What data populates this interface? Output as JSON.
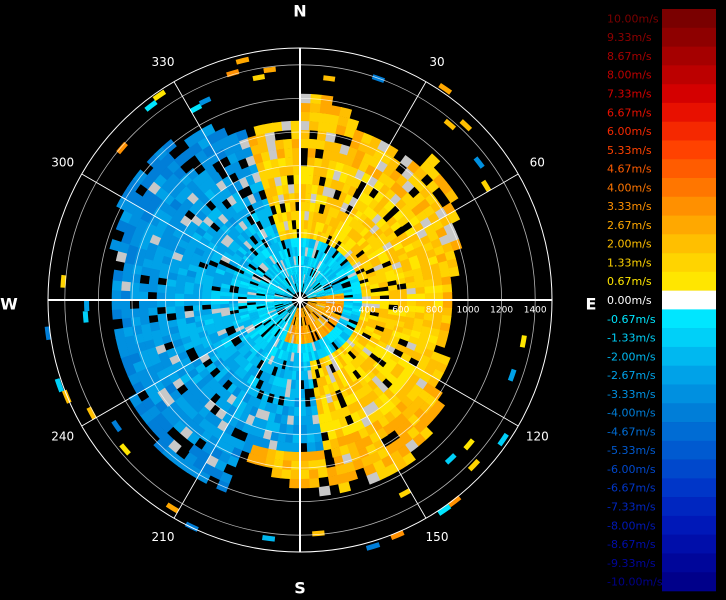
{
  "compass": {
    "north": "N",
    "east": "E",
    "south": "S",
    "west": "W"
  },
  "angle_labels": [
    {
      "deg": 30,
      "text": "30"
    },
    {
      "deg": 60,
      "text": "60"
    },
    {
      "deg": 120,
      "text": "120"
    },
    {
      "deg": 150,
      "text": "150"
    },
    {
      "deg": 210,
      "text": "210"
    },
    {
      "deg": 240,
      "text": "240"
    },
    {
      "deg": 300,
      "text": "300"
    },
    {
      "deg": 330,
      "text": "330"
    }
  ],
  "range_labels": [
    "200",
    "400",
    "600",
    "800",
    "1000",
    "1200",
    "1400"
  ],
  "colorbar": {
    "entries": [
      {
        "label": "10.00m/s",
        "color": "#7a0000"
      },
      {
        "label": "9.33m/s",
        "color": "#8e0000"
      },
      {
        "label": "8.67m/s",
        "color": "#a50000"
      },
      {
        "label": "8.00m/s",
        "color": "#bc0000"
      },
      {
        "label": "7.33m/s",
        "color": "#d40000"
      },
      {
        "label": "6.67m/s",
        "color": "#e81000"
      },
      {
        "label": "6.00m/s",
        "color": "#f52800"
      },
      {
        "label": "5.33m/s",
        "color": "#ff4200"
      },
      {
        "label": "4.67m/s",
        "color": "#ff5c00"
      },
      {
        "label": "4.00m/s",
        "color": "#ff7600"
      },
      {
        "label": "3.33m/s",
        "color": "#ff9000"
      },
      {
        "label": "2.67m/s",
        "color": "#ffa800"
      },
      {
        "label": "2.00m/s",
        "color": "#ffbf00"
      },
      {
        "label": "1.33m/s",
        "color": "#ffd400"
      },
      {
        "label": "0.67m/s",
        "color": "#ffe600"
      },
      {
        "label": "0.00m/s",
        "color": "#ffffff"
      },
      {
        "label": "-0.67m/s",
        "color": "#00e6ff"
      },
      {
        "label": "-1.33m/s",
        "color": "#00d0f8"
      },
      {
        "label": "-2.00m/s",
        "color": "#00b8f0"
      },
      {
        "label": "-2.67m/s",
        "color": "#00a2e8"
      },
      {
        "label": "-3.33m/s",
        "color": "#0090e0"
      },
      {
        "label": "-4.00m/s",
        "color": "#007ed8"
      },
      {
        "label": "-4.67m/s",
        "color": "#006cd4"
      },
      {
        "label": "-5.33m/s",
        "color": "#005ad0"
      },
      {
        "label": "-6.00m/s",
        "color": "#0048cc"
      },
      {
        "label": "-6.67m/s",
        "color": "#0036c8"
      },
      {
        "label": "-7.33m/s",
        "color": "#0026c0"
      },
      {
        "label": "-8.00m/s",
        "color": "#0018b8"
      },
      {
        "label": "-8.67m/s",
        "color": "#000eaa"
      },
      {
        "label": "-9.33m/s",
        "color": "#00069a"
      },
      {
        "label": "-10.00m/s",
        "color": "#00008a"
      }
    ]
  }
}
